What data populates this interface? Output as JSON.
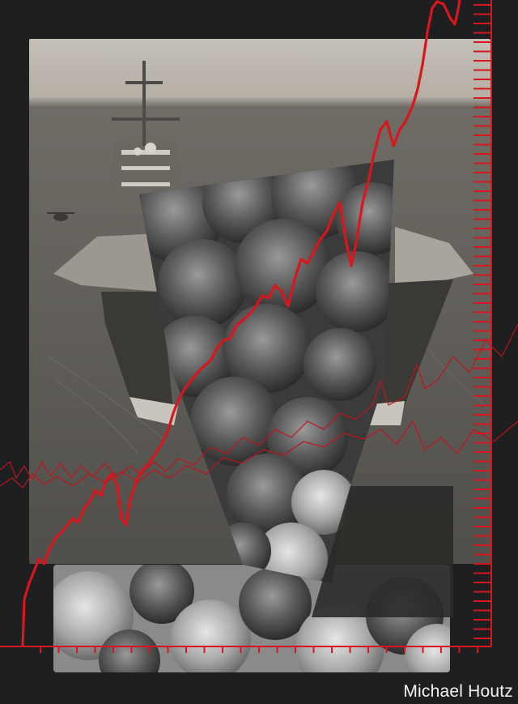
{
  "credit": "Michael Houtz",
  "colors": {
    "background": "#1e1f20",
    "accent_red": "#d8161d",
    "sea": "#5f5d58",
    "sky": "#b9b4ac",
    "smoke": "#3c3c3c"
  },
  "scene": {
    "subject": "aircraft-carrier",
    "overlay": "smoke-plume",
    "graphic": "rising-red-price-line"
  }
}
